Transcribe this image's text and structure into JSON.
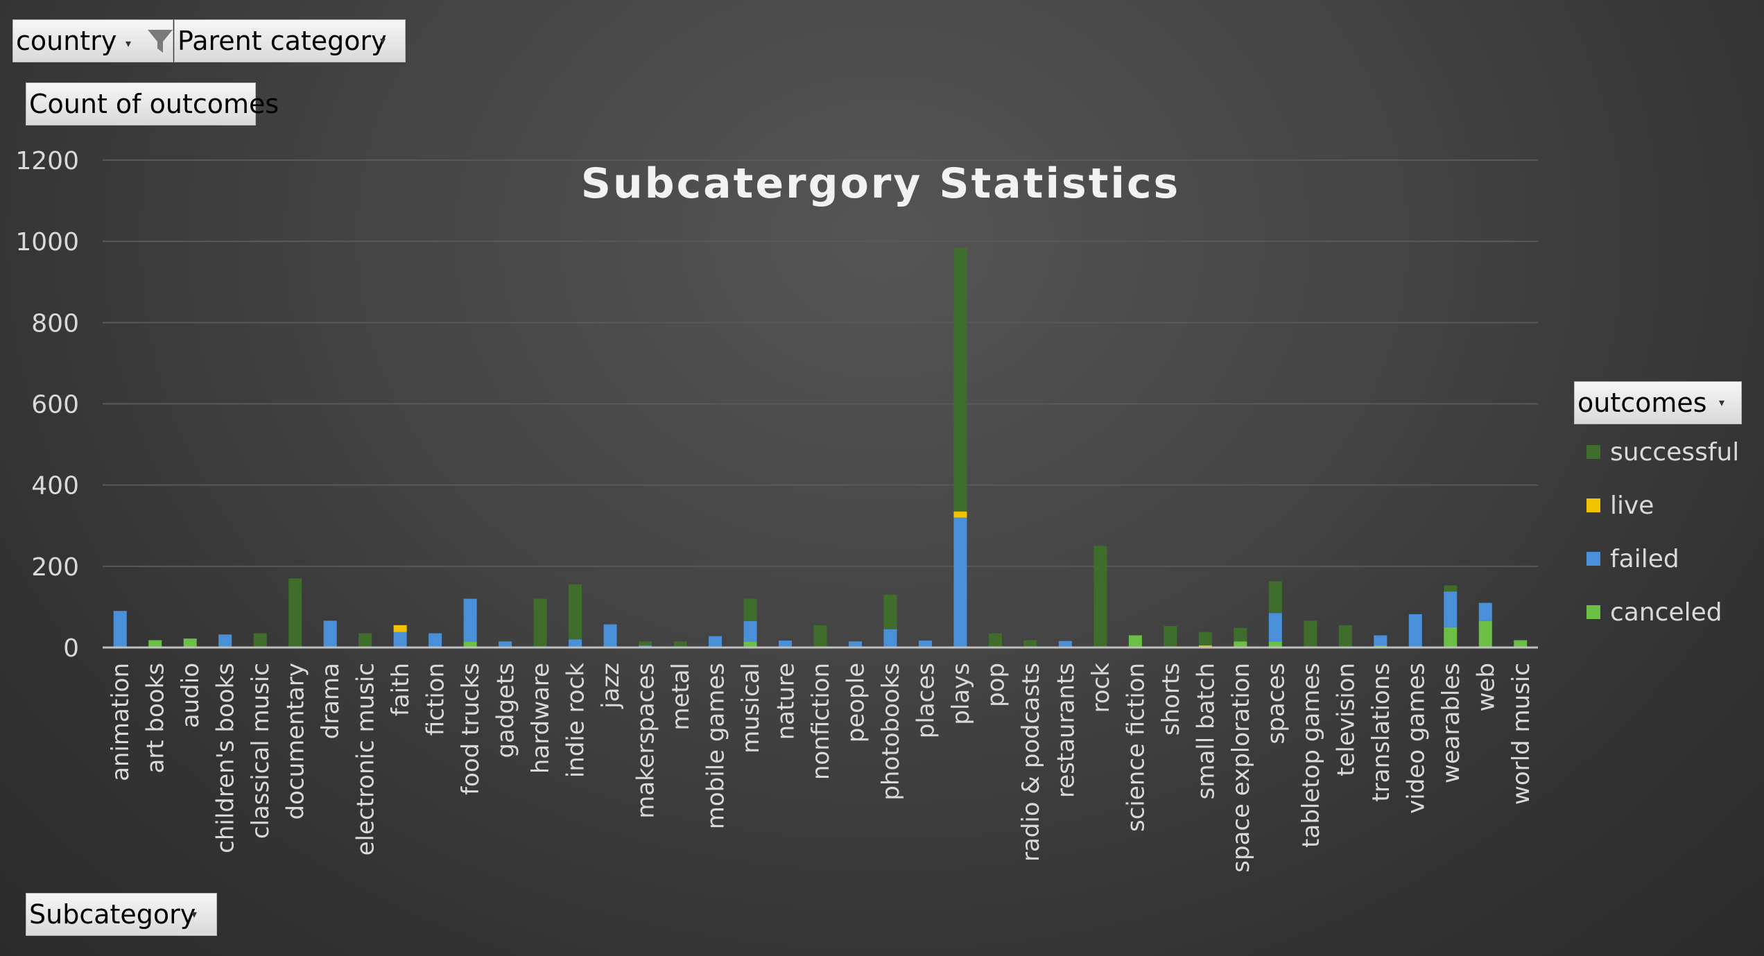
{
  "filters": {
    "country_label": "country",
    "parent_category_label": "Parent category",
    "value_field_label": "Count of outcomes",
    "legend_field_label": "outcomes",
    "axis_field_label": "Subcategory"
  },
  "icons": {
    "filter": "funnel-filter-icon",
    "dropdown": "chevron-down-icon"
  },
  "colors": {
    "successful": "#3f6e2c",
    "live": "#f2c200",
    "failed": "#4a90d9",
    "canceled": "#6cbf45",
    "background": "#404040",
    "gridline": "#595959",
    "axis_text": "#d9d9d9",
    "title": "#f2f2f2"
  },
  "chart_data": {
    "type": "bar",
    "stacked": true,
    "title": "Subcatergory Statistics",
    "xlabel": "",
    "ylabel": "",
    "ylim": [
      0,
      1200
    ],
    "yticks": [
      0,
      200,
      400,
      600,
      800,
      1000,
      1200
    ],
    "grid": true,
    "legend_position": "right",
    "categories": [
      "animation",
      "art books",
      "audio",
      "children's books",
      "classical music",
      "documentary",
      "drama",
      "electronic music",
      "faith",
      "fiction",
      "food trucks",
      "gadgets",
      "hardware",
      "indie rock",
      "jazz",
      "makerspaces",
      "metal",
      "mobile games",
      "musical",
      "nature",
      "nonfiction",
      "people",
      "photobooks",
      "places",
      "plays",
      "pop",
      "radio & podcasts",
      "restaurants",
      "rock",
      "science fiction",
      "shorts",
      "small batch",
      "space exploration",
      "spaces",
      "tabletop games",
      "television",
      "translations",
      "video games",
      "wearables",
      "web",
      "world music"
    ],
    "series": [
      {
        "name": "canceled",
        "values": [
          0,
          18,
          22,
          0,
          0,
          0,
          0,
          0,
          0,
          0,
          15,
          0,
          0,
          0,
          0,
          0,
          0,
          0,
          15,
          0,
          0,
          0,
          0,
          0,
          0,
          0,
          0,
          0,
          0,
          30,
          0,
          0,
          15,
          15,
          0,
          0,
          5,
          0,
          50,
          65,
          18
        ]
      },
      {
        "name": "failed",
        "values": [
          90,
          0,
          0,
          32,
          0,
          0,
          66,
          0,
          38,
          35,
          105,
          15,
          0,
          20,
          57,
          5,
          0,
          28,
          50,
          17,
          0,
          15,
          45,
          17,
          320,
          0,
          0,
          16,
          0,
          0,
          0,
          0,
          0,
          70,
          0,
          0,
          25,
          82,
          88,
          45,
          0
        ]
      },
      {
        "name": "live",
        "values": [
          0,
          0,
          0,
          0,
          0,
          0,
          0,
          0,
          17,
          0,
          0,
          0,
          0,
          0,
          0,
          0,
          0,
          0,
          0,
          0,
          0,
          0,
          0,
          0,
          15,
          0,
          0,
          0,
          0,
          0,
          0,
          5,
          0,
          0,
          0,
          0,
          0,
          0,
          0,
          0,
          0
        ]
      },
      {
        "name": "successful",
        "values": [
          0,
          0,
          0,
          0,
          35,
          170,
          0,
          35,
          0,
          0,
          0,
          0,
          120,
          136,
          0,
          10,
          15,
          0,
          55,
          0,
          55,
          0,
          85,
          0,
          650,
          35,
          18,
          0,
          250,
          0,
          53,
          33,
          33,
          78,
          66,
          55,
          0,
          0,
          15,
          0,
          0
        ]
      }
    ]
  }
}
